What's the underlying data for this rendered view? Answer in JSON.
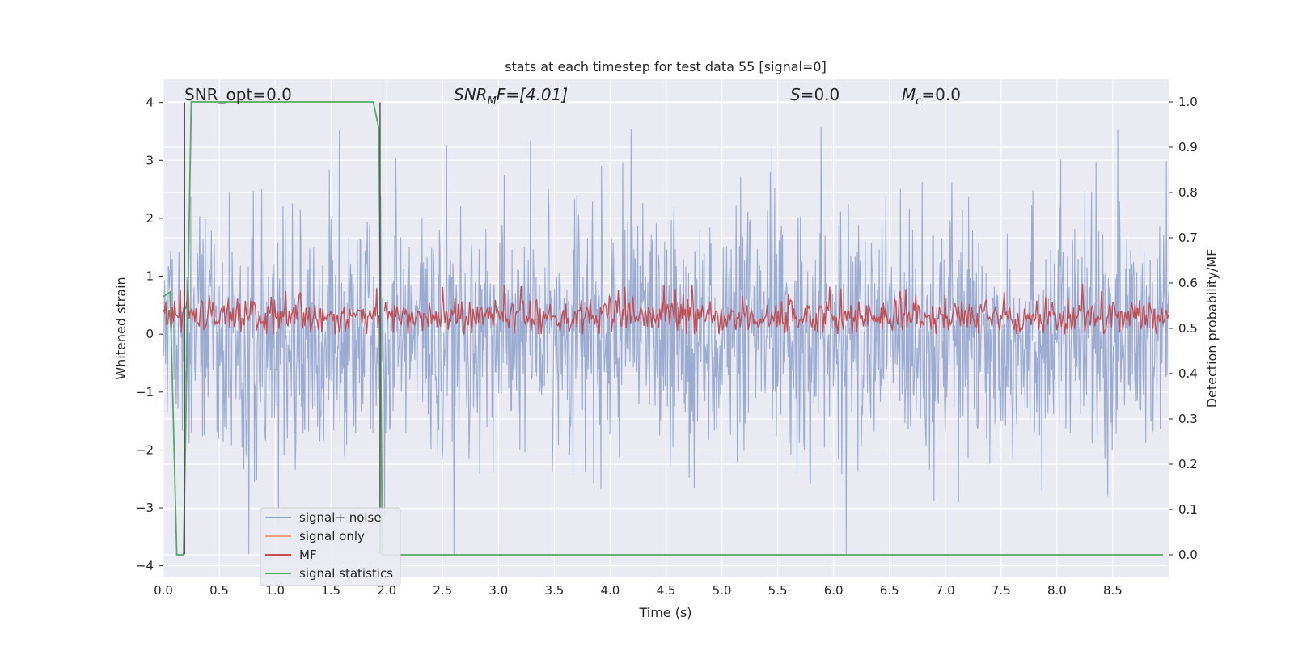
{
  "chart_data": {
    "type": "line",
    "title": "stats at each timestep for test data 55 [signal=0]",
    "xlabel": "Time (s)",
    "ylabel": "Whitened strain",
    "y2label": "Detection probability/MF",
    "xlim": [
      0,
      9.0
    ],
    "ylim": [
      -4.2,
      4.4
    ],
    "y2lim": [
      -0.05,
      1.05
    ],
    "x_ticks": [
      0.0,
      0.5,
      1.0,
      1.5,
      2.0,
      2.5,
      3.0,
      3.5,
      4.0,
      4.5,
      5.0,
      5.5,
      6.0,
      6.5,
      7.0,
      7.5,
      8.0,
      8.5
    ],
    "x_tick_labels": [
      "0.0",
      "0.5",
      "1.0",
      "1.5",
      "2.0",
      "2.5",
      "3.0",
      "3.5",
      "4.0",
      "4.5",
      "5.0",
      "5.5",
      "6.0",
      "6.5",
      "7.0",
      "7.5",
      "8.0",
      "8.5"
    ],
    "y_ticks": [
      -4,
      -3,
      -2,
      -1,
      0,
      1,
      2,
      3,
      4
    ],
    "y_tick_labels": [
      "−4",
      "−3",
      "−2",
      "−1",
      "0",
      "1",
      "2",
      "3",
      "4"
    ],
    "y2_ticks": [
      0.0,
      0.1,
      0.2,
      0.3,
      0.4,
      0.5,
      0.6,
      0.7,
      0.8,
      0.9,
      1.0
    ],
    "y2_tick_labels": [
      "0.0",
      "0.1",
      "0.2",
      "0.3",
      "0.4",
      "0.5",
      "0.6",
      "0.7",
      "0.8",
      "0.9",
      "1.0"
    ],
    "grid": true,
    "legend_position": "lower-left",
    "series": [
      {
        "name": "signal+ noise",
        "color": "#8da0cb",
        "axis": "left",
        "noise": {
          "x_start": 0,
          "x_end": 9.0,
          "mean": 0,
          "typical_range": [
            -2.2,
            2.0
          ],
          "peak_max": 4.0,
          "peak_min": -3.8
        }
      },
      {
        "name": "signal only",
        "color": "#f0a080",
        "axis": "left",
        "values": []
      },
      {
        "name": "MF",
        "color": "#c44e52",
        "axis": "left",
        "noise": {
          "x_ranges": [
            [
              0,
              1.93
            ],
            [
              1.98,
              9.0
            ]
          ],
          "typical_range": [
            0.0,
            0.6
          ],
          "peak_max": 1.0
        }
      },
      {
        "name": "signal statistics",
        "color": "#55a868",
        "axis": "right",
        "x": [
          0.0,
          0.06,
          0.12,
          0.18,
          0.25,
          0.5,
          1.0,
          1.5,
          1.88,
          1.93,
          1.96,
          2.0,
          2.5,
          3.0,
          4.0,
          5.0,
          6.0,
          7.0,
          8.0,
          8.95
        ],
        "y": [
          0.57,
          0.58,
          0.0,
          0.0,
          1.0,
          1.0,
          1.0,
          1.0,
          1.0,
          0.94,
          0.0,
          0.0,
          0.0,
          0.0,
          0.0,
          0.0,
          0.0,
          0.0,
          0.0,
          0.0
        ]
      }
    ],
    "vlines": [
      0.19,
      1.94
    ],
    "annotations": [
      {
        "text": "SNR_opt=0.0",
        "x": 0.19,
        "y": 4.05
      },
      {
        "text": "SNR_MF=[4.01]",
        "x": 2.6,
        "y": 4.05,
        "display": {
          "base": "SNR",
          "sub": "M",
          "after": "F=[4.01]"
        }
      },
      {
        "text": "S=0.0",
        "x": 5.6,
        "y": 4.05,
        "display": {
          "base": "S",
          "sub": "",
          "after": "=0.0"
        }
      },
      {
        "text": "M_c=0.0",
        "x": 6.6,
        "y": 4.05,
        "display": {
          "base": "M",
          "sub": "c",
          "after": "=0.0"
        }
      }
    ]
  }
}
